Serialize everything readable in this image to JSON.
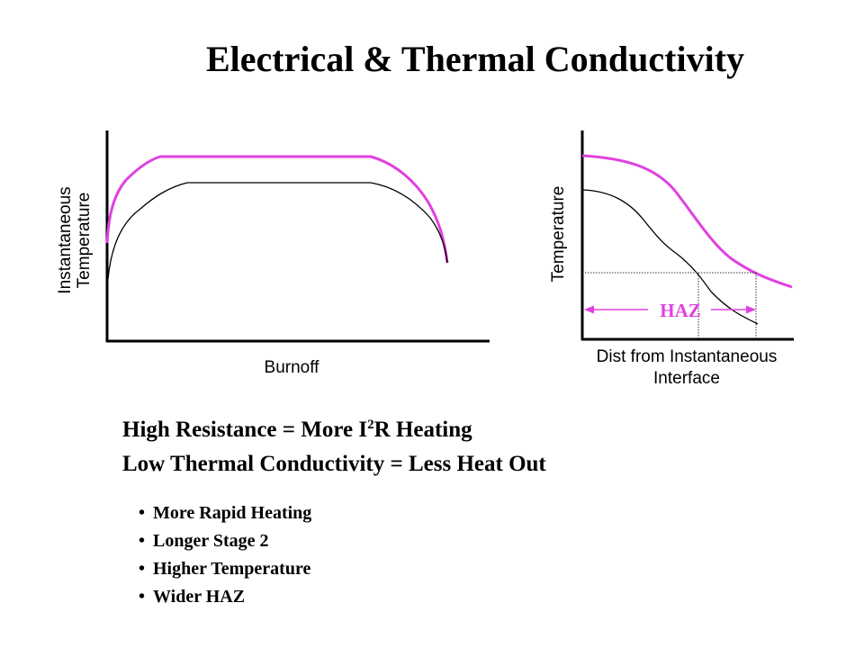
{
  "title": "Electrical & Thermal Conductivity",
  "left_plot": {
    "ylabel_line1": "Instantaneous",
    "ylabel_line2": "Temperature",
    "xlabel": "Burnoff",
    "curve_colors": {
      "high": "#e040e0",
      "low": "#000000"
    }
  },
  "right_plot": {
    "ylabel": "Temperature",
    "xlabel_line1": "Dist from Instantaneous",
    "xlabel_line2": "Interface",
    "haz_label": "HAZ",
    "curve_colors": {
      "high": "#e040e0",
      "low": "#000000"
    }
  },
  "statements": {
    "line1_pre": "High Resistance = More I",
    "line1_sup": "2",
    "line1_post": "R Heating",
    "line2": "Low Thermal Conductivity = Less Heat Out"
  },
  "bullet_symbol": "•",
  "bullets": [
    "More Rapid Heating",
    "Longer Stage 2",
    "Higher Temperature",
    "Wider HAZ"
  ]
}
